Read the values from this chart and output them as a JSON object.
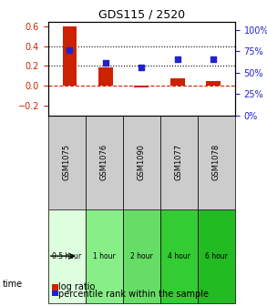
{
  "title": "GDS115 / 2520",
  "samples": [
    "GSM1075",
    "GSM1076",
    "GSM1090",
    "GSM1077",
    "GSM1078"
  ],
  "time_labels": [
    "0.5 hour",
    "1 hour",
    "2 hour",
    "4 hour",
    "6 hour"
  ],
  "time_colors": [
    "#ccffcc",
    "#88ee88",
    "#66dd66",
    "#33cc33",
    "#00bb00"
  ],
  "log_ratio": [
    0.6,
    0.18,
    -0.02,
    0.07,
    0.05
  ],
  "percentile": [
    0.36,
    0.235,
    0.18,
    0.27,
    0.27
  ],
  "bar_color": "#cc2200",
  "dot_color": "#2222cc",
  "ylim_left": [
    -0.3,
    0.65
  ],
  "ylim_right": [
    0,
    110
  ],
  "yticks_left": [
    -0.2,
    0.0,
    0.2,
    0.4,
    0.6
  ],
  "yticks_right_vals": [
    0,
    25,
    50,
    75,
    100
  ],
  "yticks_right_pos": [
    0,
    25,
    50,
    75,
    100
  ],
  "hlines": [
    0.2,
    0.4
  ],
  "zero_line_y": 0.0,
  "background_color": "#ffffff",
  "plot_bg": "#ffffff",
  "time_row_colors": [
    "#e8ffe8",
    "#99ee99",
    "#77dd77",
    "#44cc44",
    "#22bb22"
  ]
}
